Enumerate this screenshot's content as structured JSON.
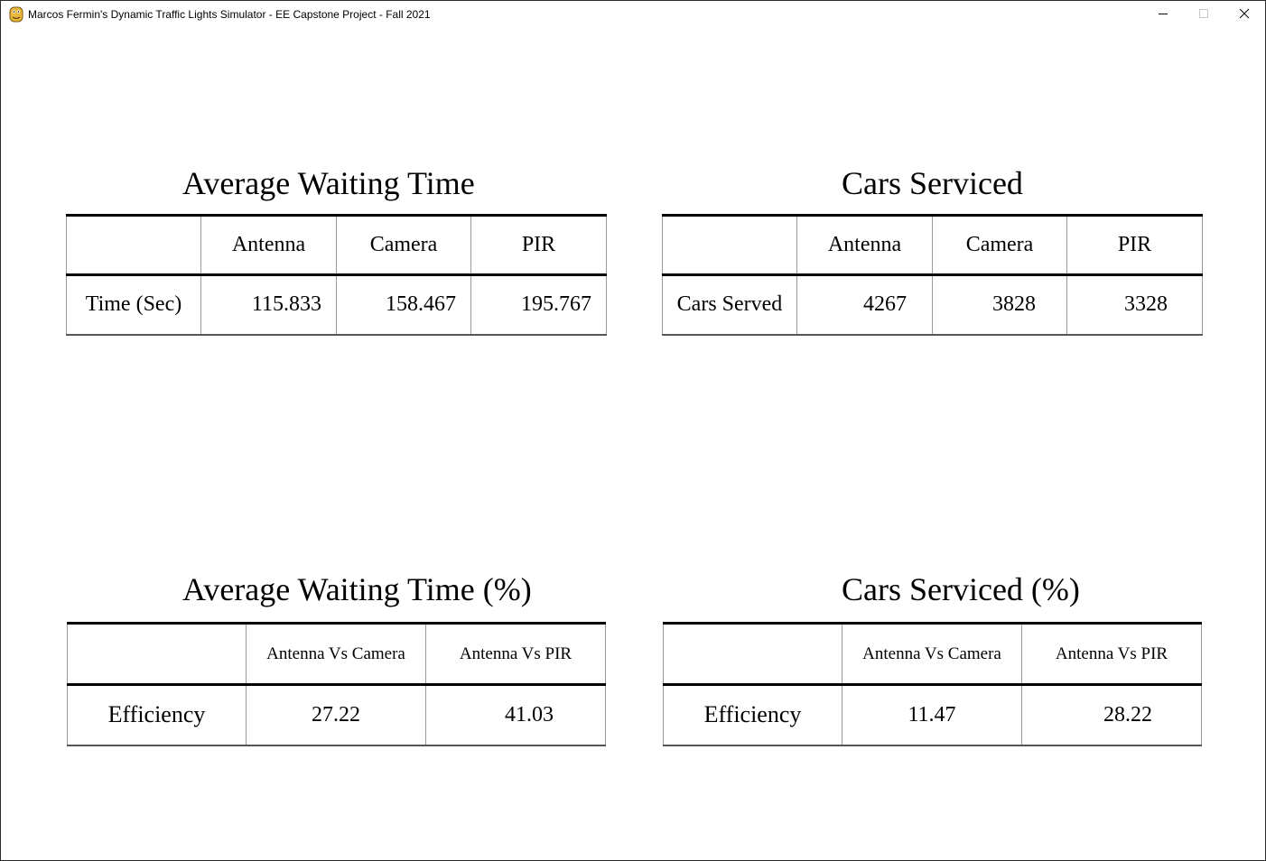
{
  "window": {
    "title": "Marcos Fermin's Dynamic Traffic Lights Simulator - EE Capstone Project - Fall 2021",
    "app_icon": "python-icon",
    "controls": [
      "minimize-icon",
      "maximize-icon",
      "close-icon"
    ]
  },
  "tables": {
    "avg_wait": {
      "title": "Average Waiting Time",
      "headers": [
        "",
        "Antenna",
        "Camera",
        "PIR"
      ],
      "row_label": "Time (Sec)",
      "values": [
        "115.833",
        "158.467",
        "195.767"
      ]
    },
    "cars_serviced": {
      "title": "Cars Serviced",
      "headers": [
        "",
        "Antenna",
        "Camera",
        "PIR"
      ],
      "row_label": "Cars Served",
      "values": [
        "4267",
        "3828",
        "3328"
      ]
    },
    "avg_wait_pct": {
      "title": "Average Waiting Time (%)",
      "headers": [
        "",
        "Antenna Vs Camera",
        "Antenna Vs PIR"
      ],
      "row_label": "Efficiency",
      "values": [
        "27.22",
        "41.03"
      ]
    },
    "cars_serviced_pct": {
      "title": "Cars Serviced (%)",
      "headers": [
        "",
        "Antenna Vs Camera",
        "Antenna Vs PIR"
      ],
      "row_label": "Efficiency",
      "values": [
        "11.47",
        "28.22"
      ]
    }
  }
}
